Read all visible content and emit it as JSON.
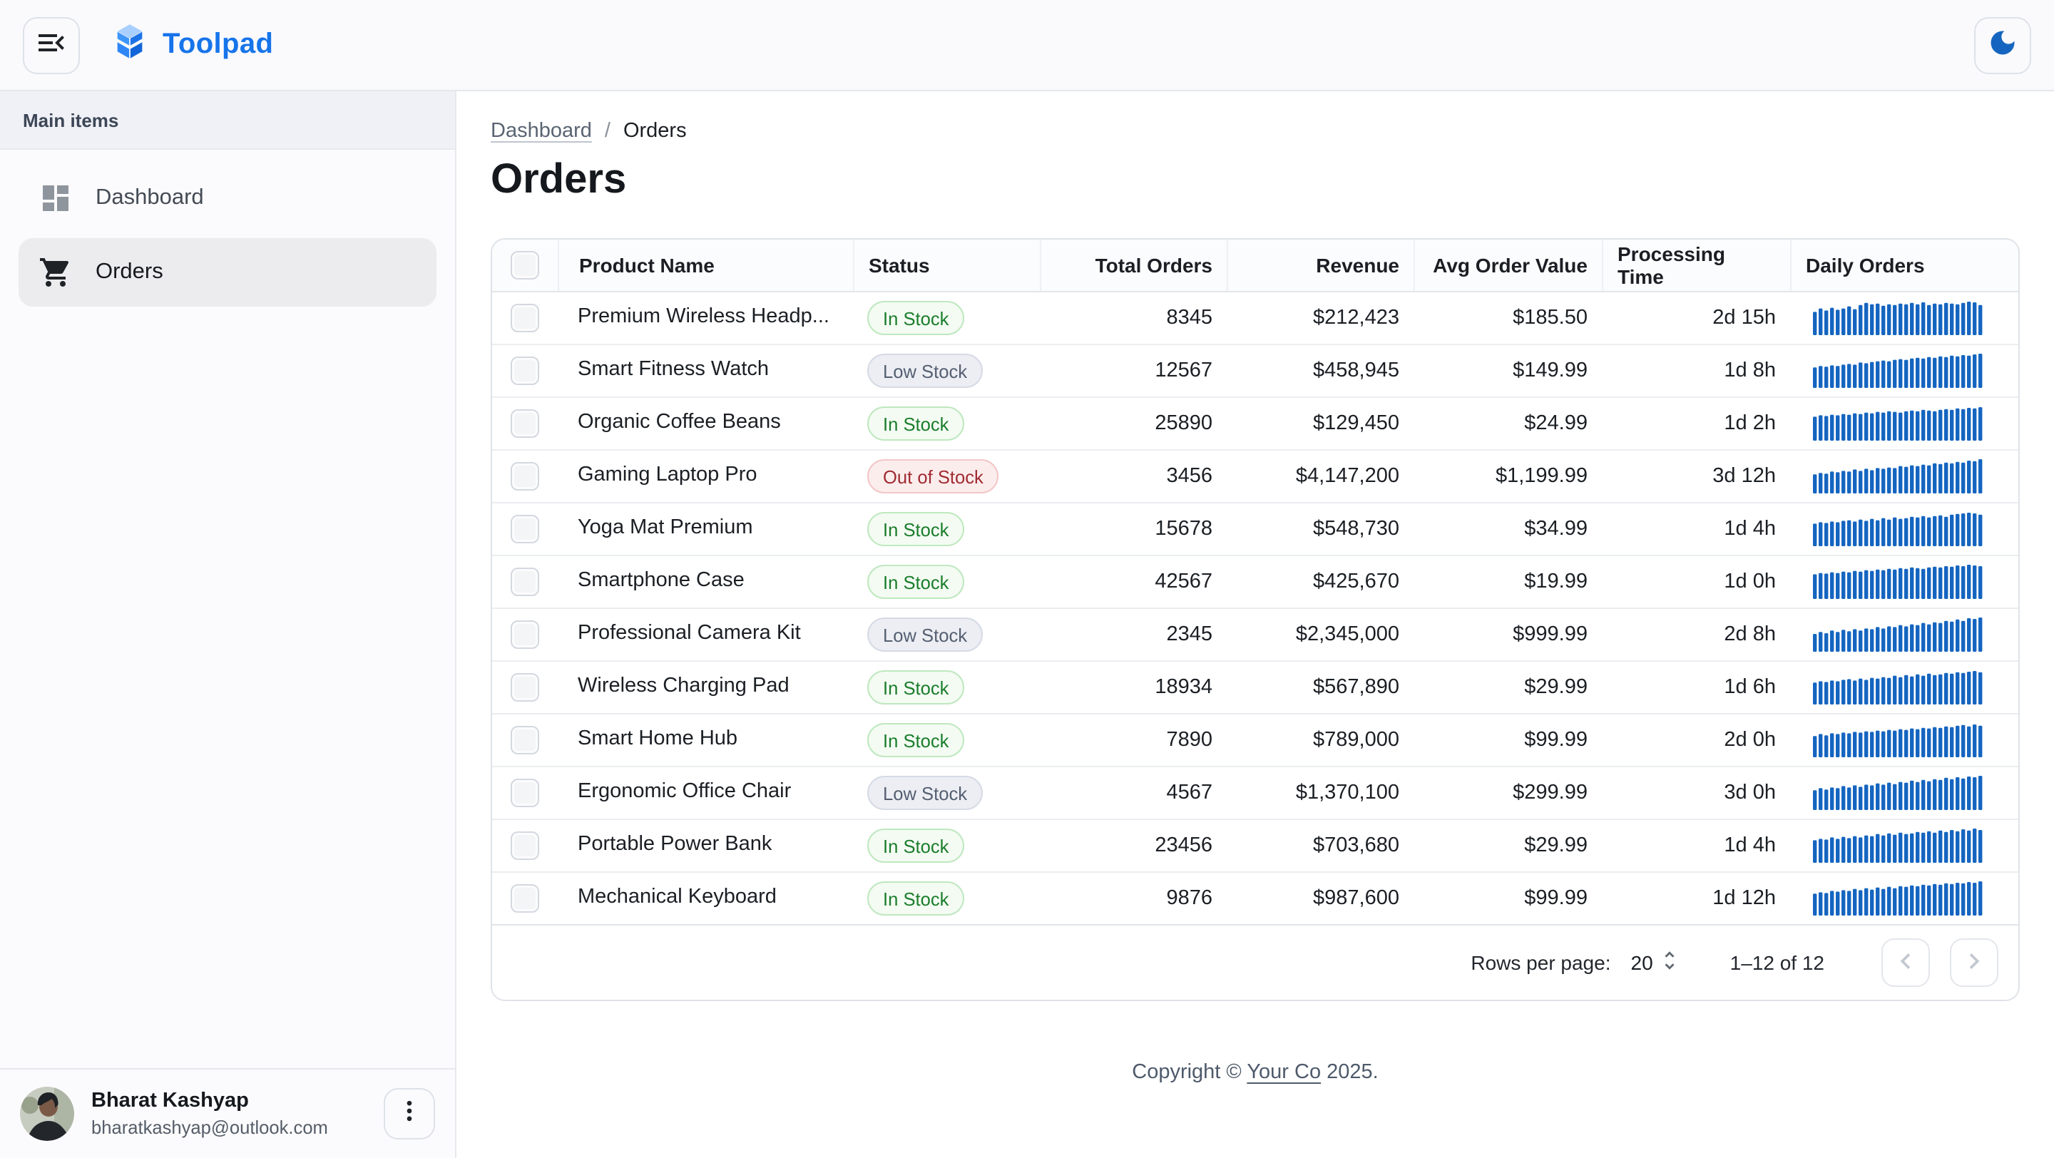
{
  "app": {
    "name": "Toolpad"
  },
  "colors": {
    "brand": "#1674EA",
    "sparkline": "#1565C0",
    "moon": "#1565C0",
    "chip_in_stock": {
      "text": "#1B7D2C",
      "bg": "#F3FBF2",
      "border": "#BFE8BF"
    },
    "chip_low_stock": {
      "text": "#555F70",
      "bg": "#ECEEF4",
      "border": "#D5DAE4"
    },
    "chip_out_of_stock": {
      "text": "#A02B32",
      "bg": "#FCEDED",
      "border": "#F3C6C6"
    }
  },
  "header": {
    "menu_icon": "menu-open-icon",
    "theme_toggle_icon": "moon-icon"
  },
  "sidebar": {
    "section_label": "Main items",
    "items": [
      {
        "label": "Dashboard",
        "icon": "dashboard-icon",
        "selected": false
      },
      {
        "label": "Orders",
        "icon": "cart-icon",
        "selected": true
      }
    ],
    "user": {
      "name": "Bharat Kashyap",
      "email": "bharatkashyap@outlook.com",
      "menu_icon": "more-vert-icon"
    }
  },
  "breadcrumb": {
    "items": [
      "Dashboard",
      "Orders"
    ]
  },
  "page": {
    "title": "Orders"
  },
  "table": {
    "columns": [
      {
        "label": "Product Name",
        "align": "left"
      },
      {
        "label": "Status",
        "align": "left"
      },
      {
        "label": "Total Orders",
        "align": "right"
      },
      {
        "label": "Revenue",
        "align": "right"
      },
      {
        "label": "Avg Order Value",
        "align": "right"
      },
      {
        "label": "Processing Time",
        "align": "right"
      },
      {
        "label": "Daily Orders",
        "align": "left"
      }
    ],
    "rows": [
      {
        "product": "Premium Wireless Headp...",
        "status": "In Stock",
        "total_orders": "8345",
        "revenue": "$212,423",
        "avg_order_value": "$185.50",
        "processing_time": "2d 15h",
        "daily_orders": [
          68,
          78,
          72,
          80,
          74,
          78,
          84,
          76,
          88,
          94,
          90,
          92,
          86,
          90,
          88,
          92,
          90,
          94,
          90,
          96,
          88,
          92,
          90,
          94,
          92,
          90,
          94,
          98,
          96,
          88
        ]
      },
      {
        "product": "Smart Fitness Watch",
        "status": "Low Stock",
        "total_orders": "12567",
        "revenue": "$458,945",
        "avg_order_value": "$149.99",
        "processing_time": "1d 8h",
        "daily_orders": [
          60,
          64,
          62,
          66,
          64,
          68,
          70,
          68,
          74,
          72,
          76,
          78,
          80,
          78,
          82,
          84,
          82,
          86,
          88,
          86,
          90,
          88,
          92,
          90,
          94,
          92,
          96,
          94,
          98,
          100
        ]
      },
      {
        "product": "Organic Coffee Beans",
        "status": "In Stock",
        "total_orders": "25890",
        "revenue": "$129,450",
        "avg_order_value": "$24.99",
        "processing_time": "1d 2h",
        "daily_orders": [
          70,
          74,
          72,
          76,
          74,
          78,
          76,
          80,
          78,
          82,
          80,
          84,
          82,
          86,
          84,
          82,
          86,
          88,
          86,
          90,
          88,
          86,
          90,
          92,
          90,
          94,
          92,
          96,
          94,
          98
        ]
      },
      {
        "product": "Gaming Laptop Pro",
        "status": "Out of Stock",
        "total_orders": "3456",
        "revenue": "$4,147,200",
        "avg_order_value": "$1,199.99",
        "processing_time": "3d 12h",
        "daily_orders": [
          56,
          60,
          58,
          64,
          62,
          66,
          64,
          70,
          66,
          72,
          68,
          74,
          72,
          76,
          74,
          80,
          78,
          82,
          80,
          84,
          82,
          88,
          86,
          90,
          88,
          92,
          90,
          96,
          94,
          100
        ]
      },
      {
        "product": "Yoga Mat Premium",
        "status": "In Stock",
        "total_orders": "15678",
        "revenue": "$548,730",
        "avg_order_value": "$34.99",
        "processing_time": "1d 4h",
        "daily_orders": [
          66,
          70,
          68,
          72,
          70,
          74,
          76,
          72,
          78,
          74,
          80,
          76,
          82,
          78,
          84,
          80,
          82,
          86,
          84,
          88,
          84,
          88,
          90,
          86,
          92,
          94,
          96,
          98,
          96,
          92
        ]
      },
      {
        "product": "Smartphone Case",
        "status": "In Stock",
        "total_orders": "42567",
        "revenue": "$425,670",
        "avg_order_value": "$19.99",
        "processing_time": "1d 0h",
        "daily_orders": [
          72,
          76,
          74,
          78,
          76,
          80,
          78,
          82,
          80,
          84,
          82,
          86,
          84,
          88,
          86,
          90,
          88,
          92,
          90,
          88,
          92,
          94,
          92,
          96,
          94,
          98,
          96,
          100,
          98,
          96
        ]
      },
      {
        "product": "Professional Camera Kit",
        "status": "Low Stock",
        "total_orders": "2345",
        "revenue": "$2,345,000",
        "avg_order_value": "$999.99",
        "processing_time": "2d 8h",
        "daily_orders": [
          52,
          58,
          54,
          62,
          58,
          64,
          60,
          66,
          62,
          68,
          66,
          72,
          68,
          74,
          72,
          78,
          74,
          80,
          78,
          84,
          80,
          86,
          84,
          90,
          88,
          94,
          90,
          98,
          96,
          100
        ]
      },
      {
        "product": "Wireless Charging Pad",
        "status": "In Stock",
        "total_orders": "18934",
        "revenue": "$567,890",
        "avg_order_value": "$29.99",
        "processing_time": "1d 6h",
        "daily_orders": [
          64,
          68,
          66,
          70,
          68,
          72,
          74,
          70,
          76,
          72,
          78,
          76,
          80,
          78,
          84,
          80,
          86,
          82,
          88,
          84,
          90,
          86,
          88,
          92,
          90,
          94,
          92,
          96,
          98,
          94
        ]
      },
      {
        "product": "Smart Home Hub",
        "status": "In Stock",
        "total_orders": "7890",
        "revenue": "$789,000",
        "avg_order_value": "$99.99",
        "processing_time": "2d 0h",
        "daily_orders": [
          62,
          68,
          64,
          70,
          68,
          72,
          70,
          74,
          72,
          76,
          74,
          78,
          76,
          80,
          78,
          82,
          80,
          84,
          82,
          86,
          84,
          88,
          86,
          90,
          88,
          92,
          94,
          90,
          96,
          92
        ]
      },
      {
        "product": "Ergonomic Office Chair",
        "status": "Low Stock",
        "total_orders": "4567",
        "revenue": "$1,370,100",
        "avg_order_value": "$299.99",
        "processing_time": "3d 0h",
        "daily_orders": [
          58,
          64,
          60,
          66,
          64,
          70,
          66,
          72,
          68,
          74,
          72,
          78,
          74,
          80,
          76,
          82,
          80,
          86,
          82,
          88,
          84,
          90,
          88,
          94,
          90,
          96,
          92,
          98,
          96,
          100
        ]
      },
      {
        "product": "Portable Power Bank",
        "status": "In Stock",
        "total_orders": "23456",
        "revenue": "$703,680",
        "avg_order_value": "$29.99",
        "processing_time": "1d 4h",
        "daily_orders": [
          66,
          70,
          68,
          74,
          70,
          76,
          72,
          78,
          74,
          80,
          78,
          84,
          80,
          86,
          82,
          88,
          84,
          86,
          90,
          88,
          92,
          88,
          94,
          90,
          96,
          92,
          98,
          94,
          100,
          96
        ]
      },
      {
        "product": "Mechanical Keyboard",
        "status": "In Stock",
        "total_orders": "9876",
        "revenue": "$987,600",
        "avg_order_value": "$99.99",
        "processing_time": "1d 12h",
        "daily_orders": [
          64,
          68,
          66,
          72,
          70,
          74,
          72,
          78,
          74,
          80,
          76,
          82,
          78,
          84,
          80,
          86,
          84,
          88,
          86,
          90,
          88,
          92,
          90,
          94,
          92,
          96,
          94,
          98,
          96,
          100
        ]
      }
    ]
  },
  "chart_data": {
    "type": "bar",
    "note": "per-row Daily Orders sparklines; values in table.rows[].daily_orders, y-range 0-100"
  },
  "pagination": {
    "rows_per_page_label": "Rows per page:",
    "rows_per_page": "20",
    "range": "1–12 of 12",
    "prev_icon": "chevron-left-icon",
    "next_icon": "chevron-right-icon"
  },
  "footer": {
    "prefix": "Copyright © ",
    "link_label": "Your Co",
    "suffix": " 2025."
  }
}
